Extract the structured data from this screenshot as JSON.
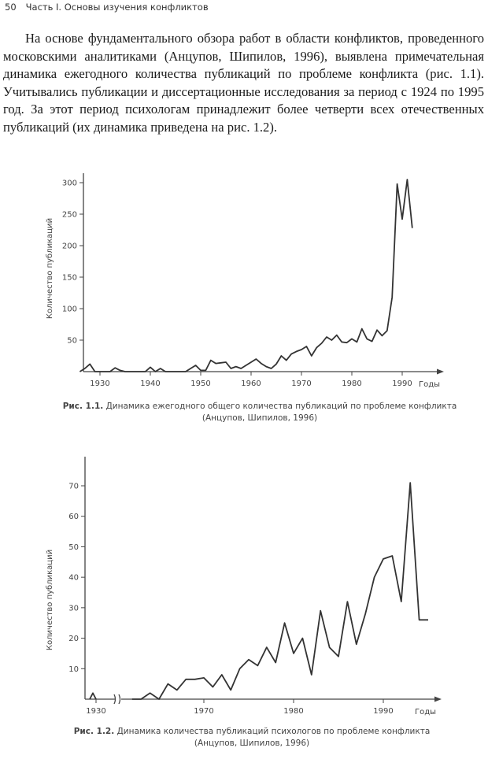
{
  "page": {
    "number": "50",
    "running_head": "Часть I. Основы изучения конфликтов"
  },
  "body_text": "На основе фундаментального обзора работ в области конфликтов, прове­денного московскими аналитиками (Анцупов, Шипилов, 1996), выявлена при­мечательная динамика ежегодного количества публикаций по проблеме кон­фликта (рис. 1.1). Учитывались публикации и диссертационные исследования за период с 1924 по 1995 год. За этот период психологам принадлежит более четверти всех отечественных публикаций (их динамика приведена на рис. 1.2).",
  "chart_data": [
    {
      "type": "line",
      "ylabel": "Количество публикаций",
      "xlabel": "Годы",
      "xlim": [
        1924,
        1998
      ],
      "ylim": [
        0,
        320
      ],
      "x_ticks": [
        "1930",
        "1940",
        "1950",
        "1960",
        "1970",
        "1980",
        "1990"
      ],
      "y_ticks": [
        "50",
        "100",
        "150",
        "200",
        "250",
        "300"
      ],
      "caption_number": "Рис. 1.1.",
      "caption_text": "Динамика ежегодного общего количества публикаций по проблеме конфликта",
      "caption_source": "(Анцупов, Шипилов, 1996)",
      "x": [
        1926,
        1927,
        1928,
        1929,
        1930,
        1931,
        1932,
        1933,
        1934,
        1935,
        1936,
        1937,
        1938,
        1939,
        1940,
        1941,
        1942,
        1943,
        1944,
        1945,
        1946,
        1947,
        1948,
        1949,
        1950,
        1951,
        1952,
        1953,
        1954,
        1955,
        1956,
        1957,
        1958,
        1959,
        1960,
        1961,
        1962,
        1963,
        1964,
        1965,
        1966,
        1967,
        1968,
        1969,
        1970,
        1971,
        1972,
        1973,
        1974,
        1975,
        1976,
        1977,
        1978,
        1979,
        1980,
        1981,
        1982,
        1983,
        1984,
        1985,
        1986,
        1987,
        1988,
        1989,
        1990,
        1991,
        1992
      ],
      "y": [
        0,
        5,
        12,
        0,
        0,
        0,
        0,
        6,
        2,
        0,
        0,
        0,
        0,
        0,
        7,
        0,
        5,
        0,
        0,
        0,
        0,
        0,
        5,
        10,
        2,
        2,
        18,
        13,
        14,
        15,
        5,
        8,
        5,
        10,
        15,
        20,
        13,
        8,
        5,
        12,
        25,
        18,
        28,
        32,
        35,
        40,
        25,
        38,
        45,
        55,
        50,
        58,
        47,
        46,
        52,
        47,
        68,
        52,
        48,
        66,
        57,
        65,
        118,
        298,
        242,
        305,
        228
      ]
    },
    {
      "type": "line",
      "ylabel": "Количество публикаций",
      "xlabel": "Годы",
      "ylim": [
        0,
        78
      ],
      "x_ticks": [
        "1930",
        "1970",
        "1980",
        "1990"
      ],
      "y_ticks": [
        "10",
        "20",
        "30",
        "40",
        "50",
        "60",
        "70"
      ],
      "axis_break": "1930–1960",
      "caption_number": "Рис. 1.2.",
      "caption_text": "Динамика количества публикаций психологов по проблеме конфликта",
      "caption_source": "(Анцупов, Шипилов, 1996)",
      "x_pre": [
        1928,
        1929,
        1930
      ],
      "y_pre": [
        0,
        2,
        0
      ],
      "x": [
        1962,
        1963,
        1964,
        1965,
        1966,
        1967,
        1968,
        1969,
        1970,
        1971,
        1972,
        1973,
        1974,
        1975,
        1976,
        1977,
        1978,
        1979,
        1980,
        1981,
        1982,
        1983,
        1984,
        1985,
        1986,
        1987,
        1988,
        1989,
        1990,
        1991,
        1992,
        1993,
        1994,
        1995
      ],
      "y": [
        0,
        0,
        2,
        0,
        5,
        3,
        6.5,
        6.5,
        7,
        4,
        8,
        3,
        10,
        13,
        11,
        17,
        12,
        25,
        15,
        20,
        8,
        29,
        17,
        14,
        32,
        18,
        28,
        40,
        46,
        47,
        32,
        71,
        26,
        26
      ]
    }
  ]
}
